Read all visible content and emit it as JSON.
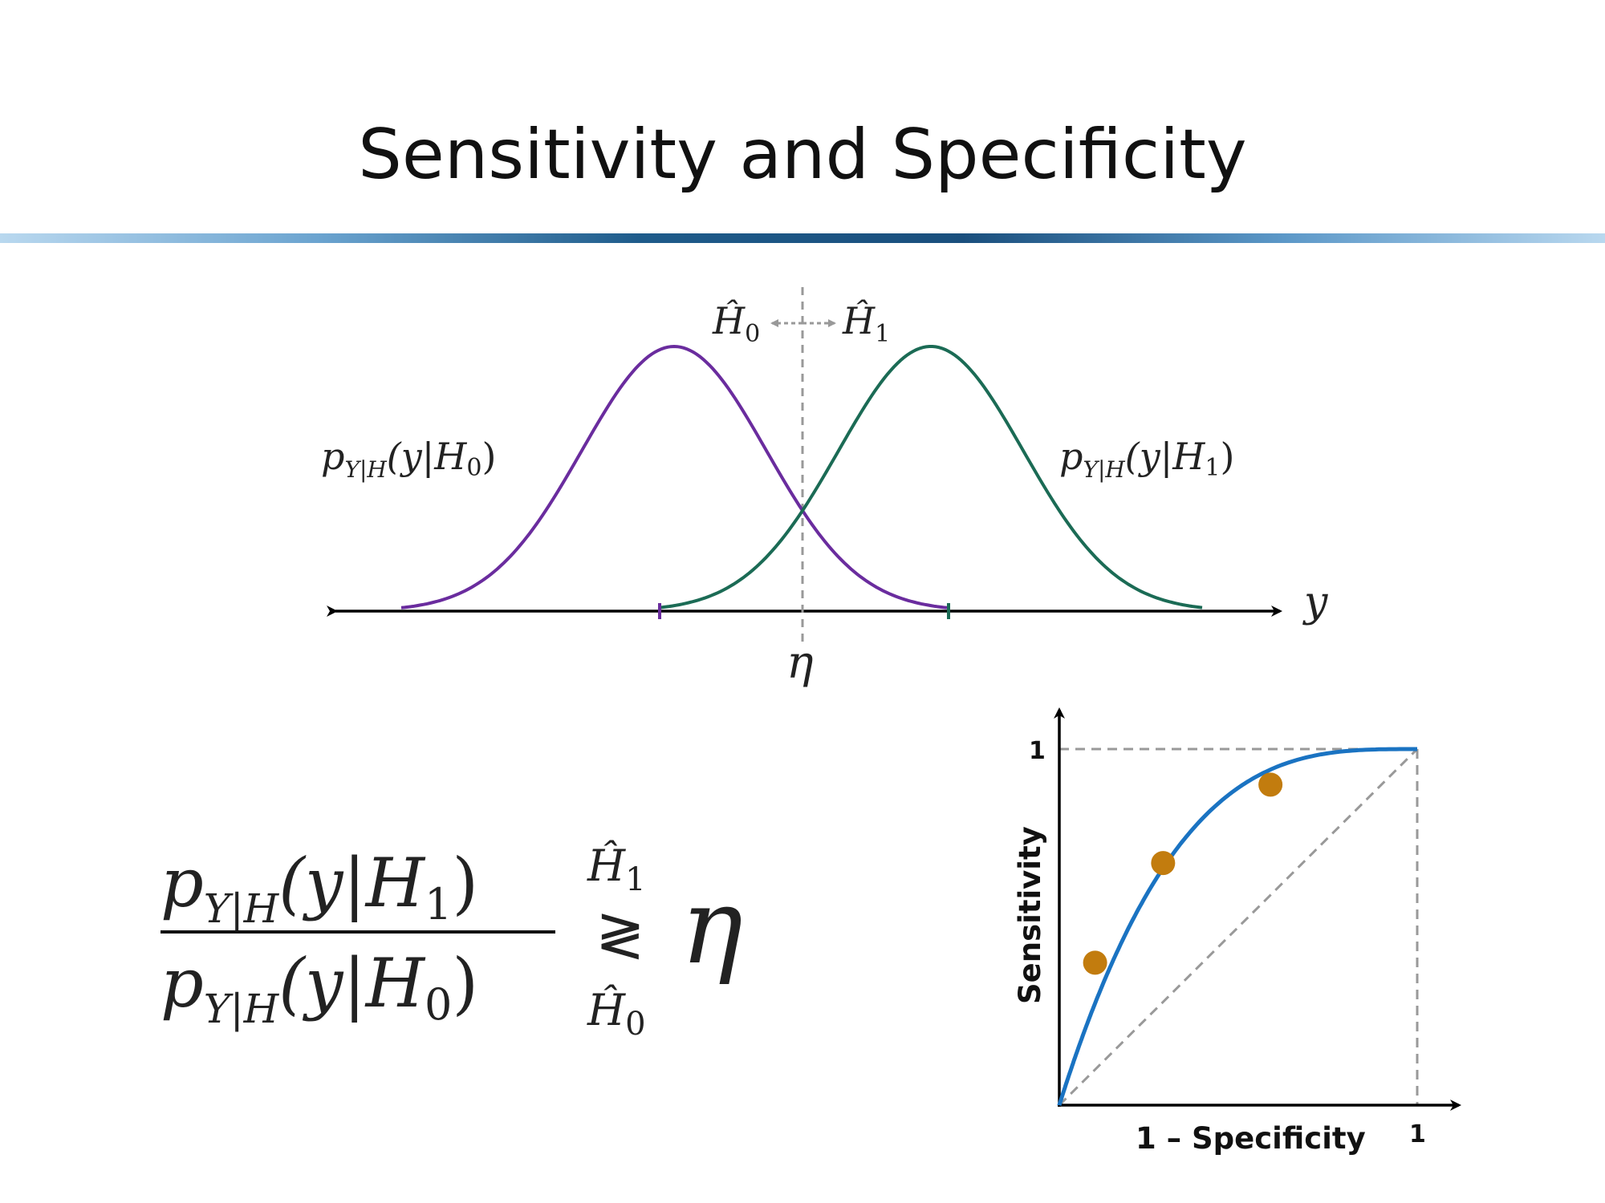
{
  "slide": {
    "title": "Sensitivity and Specificity"
  },
  "density_plot": {
    "x_axis_label": "y",
    "threshold_label": "η",
    "region_left_label": "Ĥ",
    "region_left_sub": "0",
    "region_right_label": "Ĥ",
    "region_right_sub": "1",
    "curve_h0_label": {
      "p": "p",
      "sub": "Y|H",
      "arg": "(y|H",
      "argsub": "0",
      "close": ")"
    },
    "curve_h1_label": {
      "p": "p",
      "sub": "Y|H",
      "arg": "(y|H",
      "argsub": "1",
      "close": ")"
    },
    "colors": {
      "h0": "#6a2c9e",
      "h1": "#1b6b55",
      "axis": "#000000",
      "threshold": "#999999"
    }
  },
  "formula": {
    "numerator": {
      "p": "p",
      "sub": "Y|H",
      "arg": "(y|H",
      "argsub": "1",
      "close": ")"
    },
    "denominator": {
      "p": "p",
      "sub": "Y|H",
      "arg": "(y|H",
      "argsub": "0",
      "close": ")"
    },
    "upper_hyp": "Ĥ",
    "upper_hyp_sub": "1",
    "lower_hyp": "Ĥ",
    "lower_hyp_sub": "0",
    "relation": "≷",
    "threshold": "η"
  },
  "roc": {
    "ylabel": "Sensitivity",
    "xlabel": "1 – Specificity",
    "y_tick": "1",
    "x_tick": "1",
    "points": [
      {
        "x": 0.1,
        "y": 0.4
      },
      {
        "x": 0.29,
        "y": 0.68
      },
      {
        "x": 0.59,
        "y": 0.9
      }
    ],
    "colors": {
      "curve": "#1a73c2",
      "points": "#c27c0e",
      "diagonal": "#999999"
    }
  }
}
